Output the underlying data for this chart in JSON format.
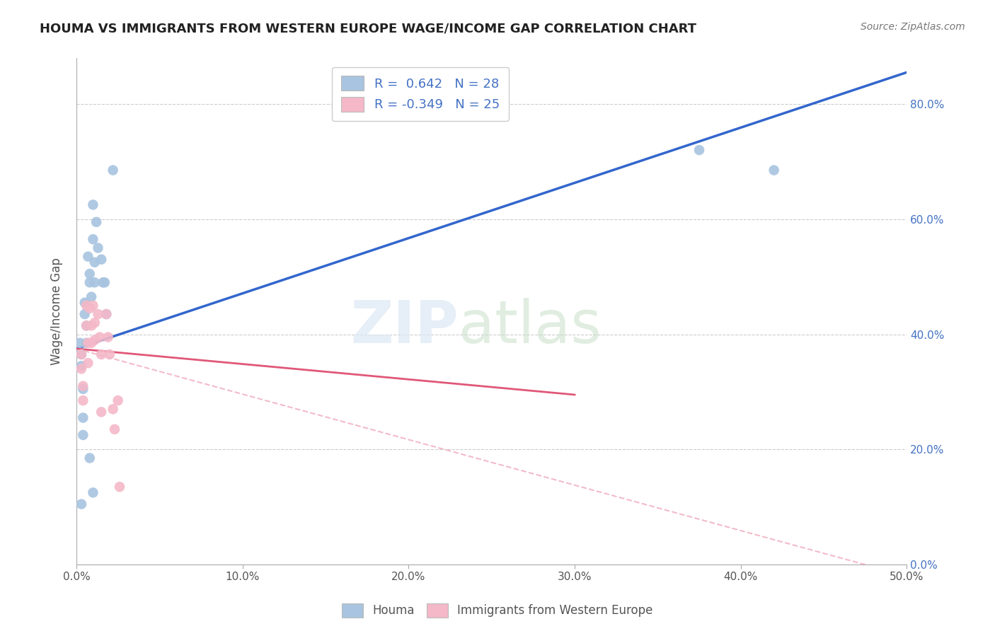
{
  "title": "HOUMA VS IMMIGRANTS FROM WESTERN EUROPE WAGE/INCOME GAP CORRELATION CHART",
  "source": "Source: ZipAtlas.com",
  "ylabel": "Wage/Income Gap",
  "houma_color": "#a8c4e0",
  "immigrants_color": "#f4b8c8",
  "line_blue": "#3366cc",
  "line_pink": "#e05878",
  "line_dashed_color": "#f0b0c0",
  "xlim": [
    0.0,
    0.5
  ],
  "ylim": [
    0.0,
    0.88
  ],
  "xticks": [
    0.0,
    0.1,
    0.2,
    0.3,
    0.4,
    0.5
  ],
  "yticks": [
    0.0,
    0.2,
    0.4,
    0.6,
    0.8
  ],
  "houma_points": [
    [
      0.002,
      0.385
    ],
    [
      0.003,
      0.365
    ],
    [
      0.003,
      0.345
    ],
    [
      0.004,
      0.305
    ],
    [
      0.005,
      0.455
    ],
    [
      0.005,
      0.435
    ],
    [
      0.006,
      0.415
    ],
    [
      0.006,
      0.385
    ],
    [
      0.007,
      0.535
    ],
    [
      0.008,
      0.505
    ],
    [
      0.008,
      0.49
    ],
    [
      0.009,
      0.465
    ],
    [
      0.01,
      0.625
    ],
    [
      0.01,
      0.565
    ],
    [
      0.011,
      0.525
    ],
    [
      0.011,
      0.49
    ],
    [
      0.012,
      0.595
    ],
    [
      0.013,
      0.55
    ],
    [
      0.015,
      0.53
    ],
    [
      0.016,
      0.49
    ],
    [
      0.017,
      0.49
    ],
    [
      0.018,
      0.435
    ],
    [
      0.022,
      0.685
    ],
    [
      0.004,
      0.255
    ],
    [
      0.004,
      0.225
    ],
    [
      0.008,
      0.185
    ],
    [
      0.01,
      0.125
    ],
    [
      0.003,
      0.105
    ],
    [
      0.375,
      0.72
    ],
    [
      0.42,
      0.685
    ]
  ],
  "immigrants_points": [
    [
      0.003,
      0.365
    ],
    [
      0.003,
      0.34
    ],
    [
      0.004,
      0.31
    ],
    [
      0.004,
      0.285
    ],
    [
      0.006,
      0.45
    ],
    [
      0.006,
      0.415
    ],
    [
      0.007,
      0.385
    ],
    [
      0.007,
      0.35
    ],
    [
      0.008,
      0.445
    ],
    [
      0.009,
      0.415
    ],
    [
      0.009,
      0.385
    ],
    [
      0.01,
      0.45
    ],
    [
      0.011,
      0.42
    ],
    [
      0.011,
      0.39
    ],
    [
      0.013,
      0.435
    ],
    [
      0.014,
      0.395
    ],
    [
      0.015,
      0.365
    ],
    [
      0.015,
      0.265
    ],
    [
      0.018,
      0.435
    ],
    [
      0.019,
      0.395
    ],
    [
      0.02,
      0.365
    ],
    [
      0.022,
      0.27
    ],
    [
      0.023,
      0.235
    ],
    [
      0.025,
      0.285
    ],
    [
      0.026,
      0.135
    ]
  ],
  "blue_line_x": [
    0.0,
    0.5
  ],
  "blue_line_y": [
    0.375,
    0.855
  ],
  "pink_line_x": [
    0.0,
    0.3
  ],
  "pink_line_y": [
    0.375,
    0.295
  ],
  "dashed_line_x": [
    0.0,
    0.5
  ],
  "dashed_line_y": [
    0.375,
    -0.02
  ]
}
